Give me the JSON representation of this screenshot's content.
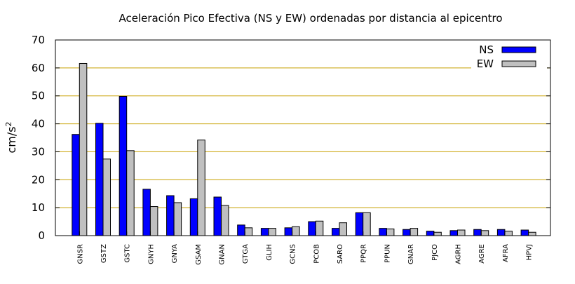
{
  "chart_data": {
    "type": "bar",
    "title": "Aceleración Pico Efectiva (NS y EW) ordenadas por distancia al epicentro",
    "xlabel": "",
    "ylabel": "cm/s",
    "ylabel_sup": "2",
    "ylim": [
      0,
      70
    ],
    "yticks": [
      "0",
      "10",
      "20",
      "30",
      "40",
      "50",
      "60",
      "70"
    ],
    "grid": "horizontal",
    "legend_position": "top-right",
    "categories": [
      "GNSR",
      "GSTZ",
      "GSTC",
      "GNYH",
      "GNYA",
      "GSAM",
      "GNAN",
      "GTGA",
      "GLIH",
      "GCNS",
      "PCOB",
      "SARO",
      "PPQR",
      "PPUN",
      "GNAR",
      "PJCO",
      "AGRH",
      "AGRE",
      "AFRA",
      "HPVJ"
    ],
    "series": [
      {
        "name": "NS",
        "color": "#0000ff",
        "values": [
          36.2,
          40.2,
          49.8,
          16.6,
          14.3,
          13.2,
          13.8,
          3.8,
          2.6,
          2.8,
          5.0,
          2.6,
          8.2,
          2.6,
          2.2,
          1.6,
          1.8,
          2.2,
          2.2,
          2.0
        ]
      },
      {
        "name": "EW",
        "color": "#c0c0c0",
        "values": [
          61.6,
          27.4,
          30.4,
          10.4,
          11.8,
          34.2,
          10.8,
          2.8,
          2.6,
          3.2,
          5.2,
          4.6,
          8.2,
          2.4,
          2.6,
          1.2,
          2.0,
          1.8,
          1.6,
          1.2
        ]
      }
    ]
  },
  "style": {
    "grid_color": "#c8a000",
    "axis_color": "#000000",
    "bar_stroke": "#000000"
  }
}
